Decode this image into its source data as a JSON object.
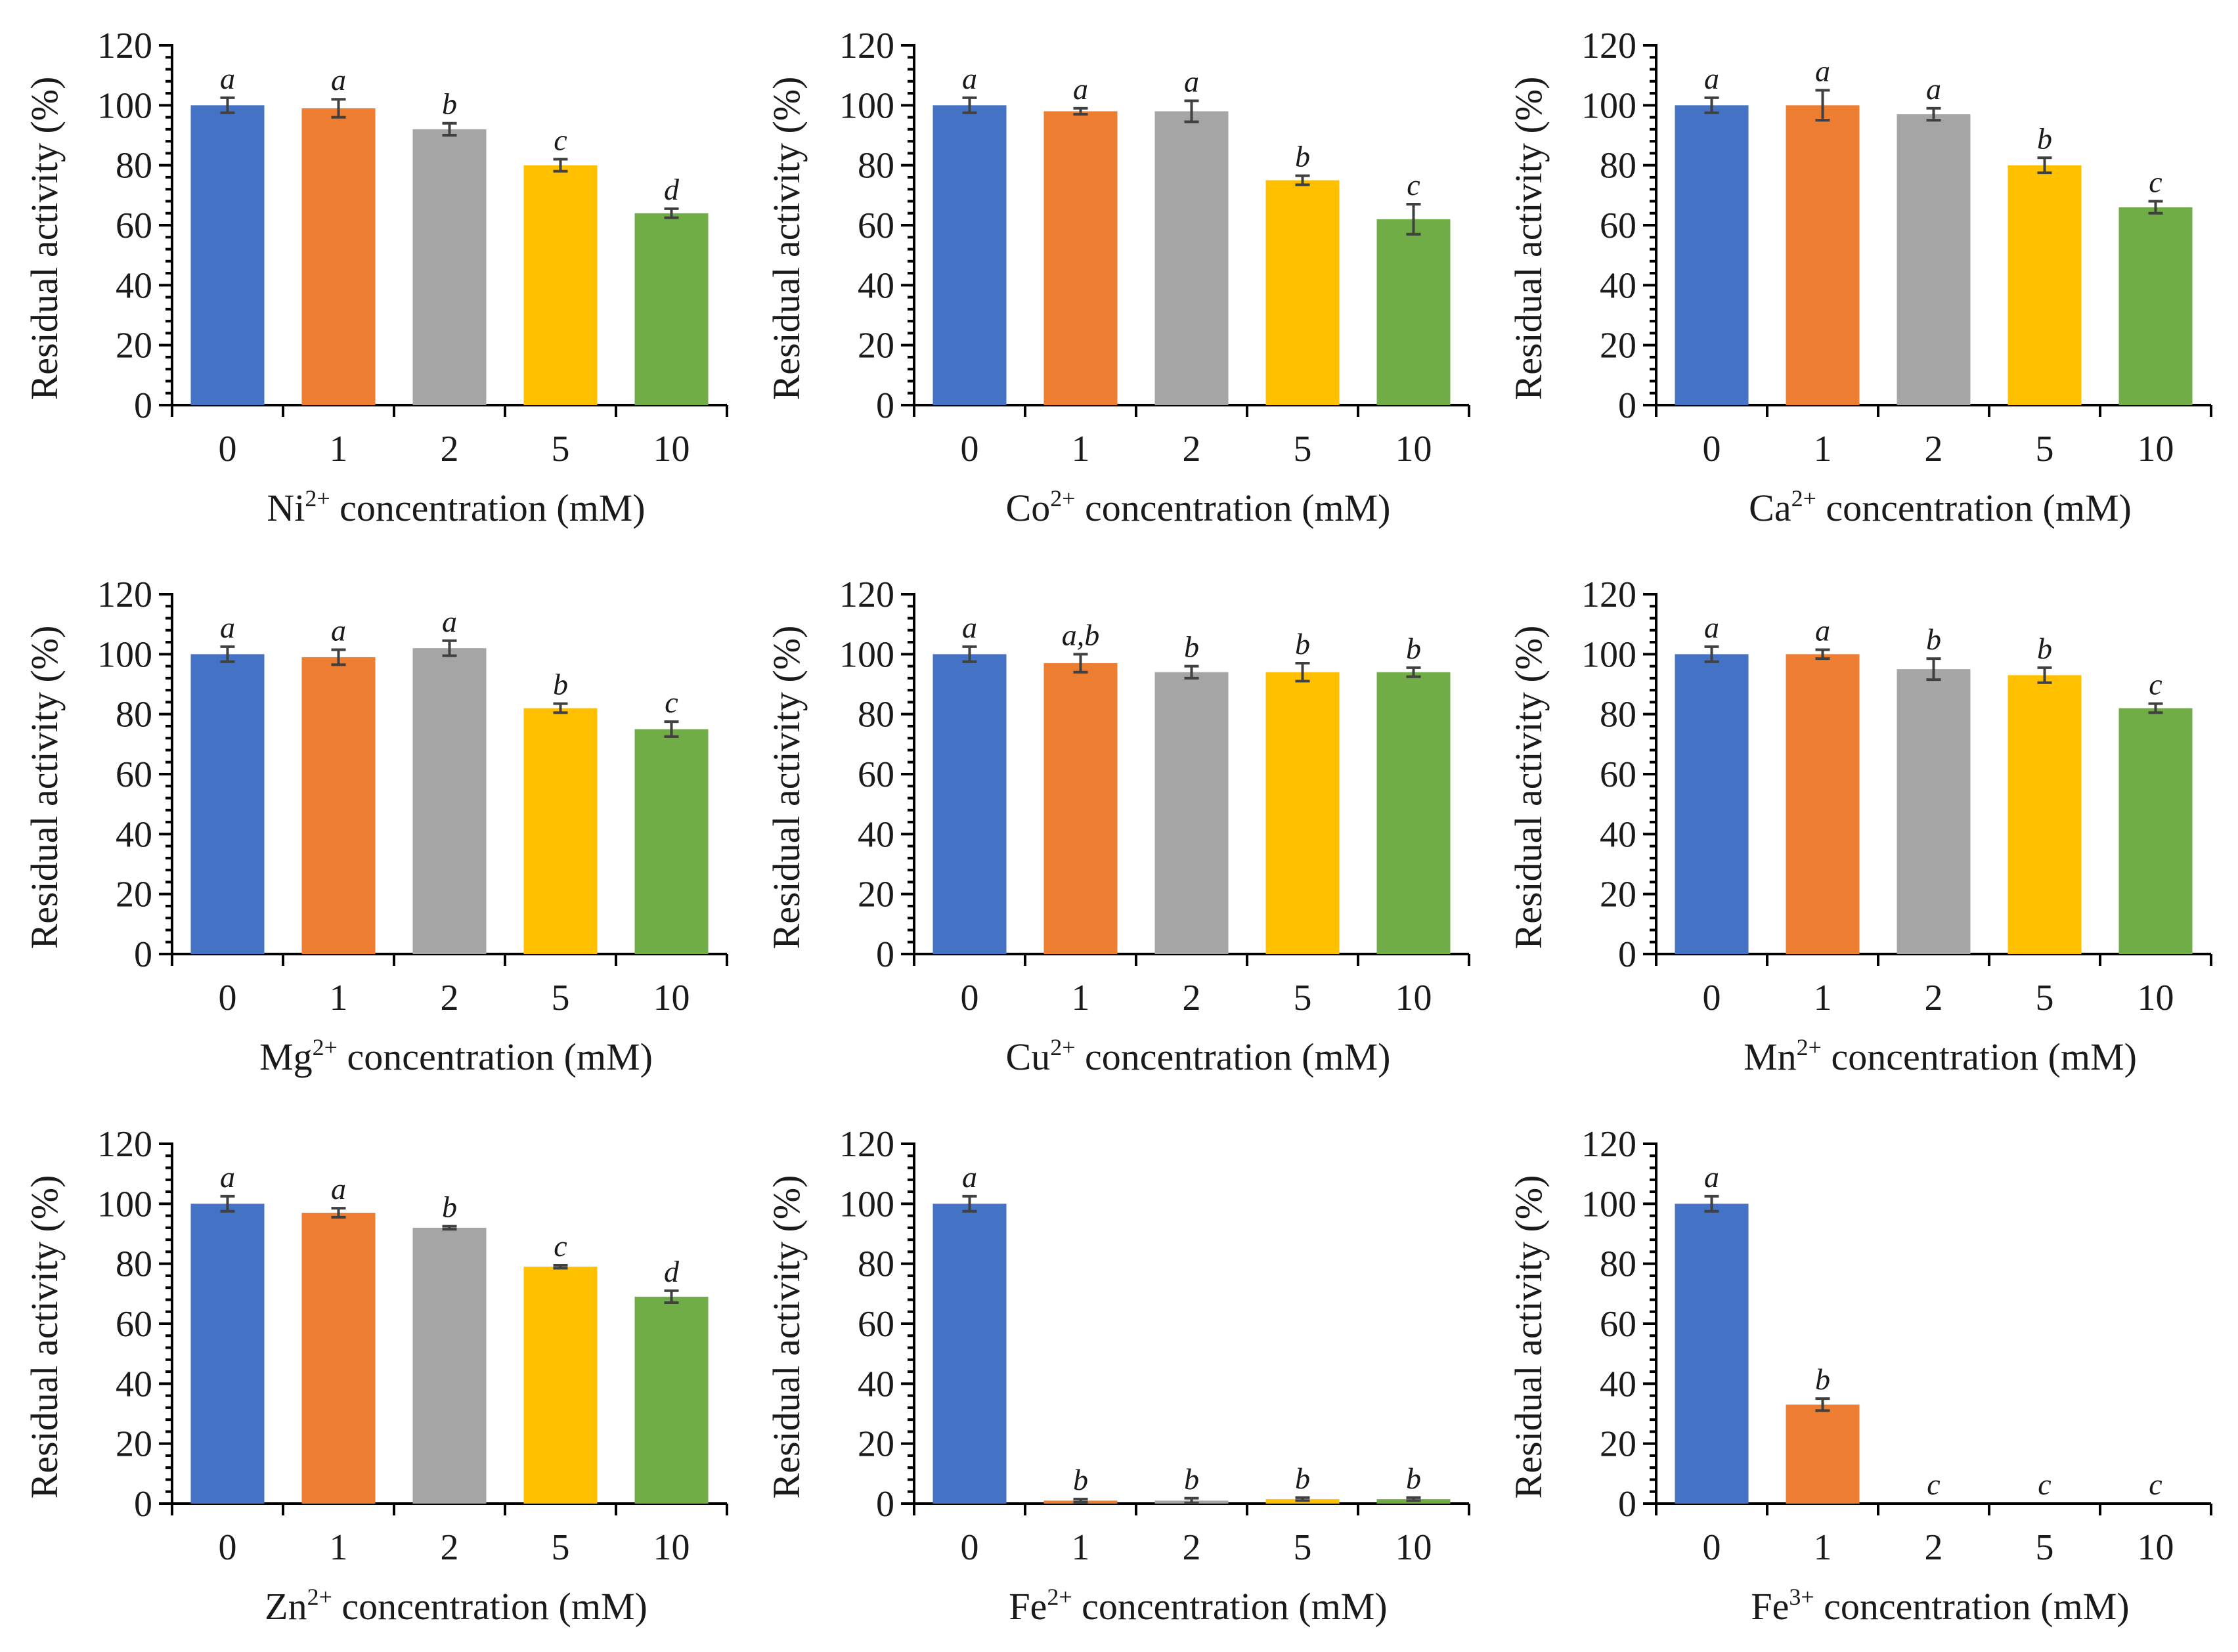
{
  "chart_data": [
    {
      "type": "bar",
      "ion": "Ni",
      "sup": "2+",
      "suffix": " concentration (mM)",
      "ylabel": "Residual activity (%)",
      "ylim": [
        0,
        120
      ],
      "yticks": [
        0,
        20,
        40,
        60,
        80,
        100,
        120
      ],
      "categories": [
        "0",
        "1",
        "2",
        "5",
        "10"
      ],
      "values": [
        100,
        99,
        92,
        80,
        64
      ],
      "errors": [
        2.5,
        3,
        2,
        2,
        1.5
      ],
      "letters": [
        "a",
        "a",
        "b",
        "c",
        "d"
      ]
    },
    {
      "type": "bar",
      "ion": "Co",
      "sup": "2+",
      "suffix": " concentration (mM)",
      "ylabel": "Residual activity (%)",
      "ylim": [
        0,
        120
      ],
      "yticks": [
        0,
        20,
        40,
        60,
        80,
        100,
        120
      ],
      "categories": [
        "0",
        "1",
        "2",
        "5",
        "10"
      ],
      "values": [
        100,
        98,
        98,
        75,
        62
      ],
      "errors": [
        2.5,
        1,
        3.5,
        1.5,
        5
      ],
      "letters": [
        "a",
        "a",
        "a",
        "b",
        "c"
      ]
    },
    {
      "type": "bar",
      "ion": "Ca",
      "sup": "2+",
      "suffix": " concentration (mM)",
      "ylabel": "Residual activity (%)",
      "ylim": [
        0,
        120
      ],
      "yticks": [
        0,
        20,
        40,
        60,
        80,
        100,
        120
      ],
      "categories": [
        "0",
        "1",
        "2",
        "5",
        "10"
      ],
      "values": [
        100,
        100,
        97,
        80,
        66
      ],
      "errors": [
        2.5,
        5,
        2,
        2.5,
        2
      ],
      "letters": [
        "a",
        "a",
        "a",
        "b",
        "c"
      ]
    },
    {
      "type": "bar",
      "ion": "Mg",
      "sup": "2+",
      "suffix": " concentration (mM)",
      "ylabel": "Residual activity (%)",
      "ylim": [
        0,
        120
      ],
      "yticks": [
        0,
        20,
        40,
        60,
        80,
        100,
        120
      ],
      "categories": [
        "0",
        "1",
        "2",
        "5",
        "10"
      ],
      "values": [
        100,
        99,
        102,
        82,
        75
      ],
      "errors": [
        2.5,
        2.5,
        2.5,
        1.5,
        2.5
      ],
      "letters": [
        "a",
        "a",
        "a",
        "b",
        "c"
      ]
    },
    {
      "type": "bar",
      "ion": "Cu",
      "sup": "2+",
      "suffix": " concentration (mM)",
      "ylabel": "Residual activity (%)",
      "ylim": [
        0,
        120
      ],
      "yticks": [
        0,
        20,
        40,
        60,
        80,
        100,
        120
      ],
      "categories": [
        "0",
        "1",
        "2",
        "5",
        "10"
      ],
      "values": [
        100,
        97,
        94,
        94,
        94
      ],
      "errors": [
        2.5,
        3,
        2,
        3,
        1.5
      ],
      "letters": [
        "a",
        "a,b",
        "b",
        "b",
        "b"
      ]
    },
    {
      "type": "bar",
      "ion": "Mn",
      "sup": "2+",
      "suffix": " concentration (mM)",
      "ylabel": "Residual activity (%)",
      "ylim": [
        0,
        120
      ],
      "yticks": [
        0,
        20,
        40,
        60,
        80,
        100,
        120
      ],
      "categories": [
        "0",
        "1",
        "2",
        "5",
        "10"
      ],
      "values": [
        100,
        100,
        95,
        93,
        82
      ],
      "errors": [
        2.5,
        1.5,
        3.5,
        2.5,
        1.5
      ],
      "letters": [
        "a",
        "a",
        "b",
        "b",
        "c"
      ]
    },
    {
      "type": "bar",
      "ion": "Zn",
      "sup": "2+",
      "suffix": " concentration (mM)",
      "ylabel": "Residual activity (%)",
      "ylim": [
        0,
        120
      ],
      "yticks": [
        0,
        20,
        40,
        60,
        80,
        100,
        120
      ],
      "categories": [
        "0",
        "1",
        "2",
        "5",
        "10"
      ],
      "values": [
        100,
        97,
        92,
        79,
        69
      ],
      "errors": [
        2.5,
        1.5,
        0.5,
        0.5,
        2
      ],
      "letters": [
        "a",
        "a",
        "b",
        "c",
        "d"
      ]
    },
    {
      "type": "bar",
      "ion": "Fe",
      "sup": "2+",
      "suffix": " concentration (mM)",
      "ylabel": "Residual activity (%)",
      "ylim": [
        0,
        120
      ],
      "yticks": [
        0,
        20,
        40,
        60,
        80,
        100,
        120
      ],
      "categories": [
        "0",
        "1",
        "2",
        "5",
        "10"
      ],
      "values": [
        100,
        1,
        1,
        1.5,
        1.5
      ],
      "errors": [
        2.5,
        0.5,
        0.8,
        0.5,
        0.5
      ],
      "letters": [
        "a",
        "b",
        "b",
        "b",
        "b"
      ]
    },
    {
      "type": "bar",
      "ion": "Fe",
      "sup": "3+",
      "suffix": " concentration (mM)",
      "ylabel": "Residual activity (%)",
      "ylim": [
        0,
        120
      ],
      "yticks": [
        0,
        20,
        40,
        60,
        80,
        100,
        120
      ],
      "categories": [
        "0",
        "1",
        "2",
        "5",
        "10"
      ],
      "values": [
        100,
        33,
        0,
        0,
        0
      ],
      "errors": [
        2.5,
        2,
        0,
        0,
        0
      ],
      "letters": [
        "a",
        "b",
        "c",
        "c",
        "c"
      ]
    }
  ],
  "bar_colors": [
    "#4472C4",
    "#ED7D31",
    "#A5A5A5",
    "#FFC000",
    "#70AD47"
  ]
}
